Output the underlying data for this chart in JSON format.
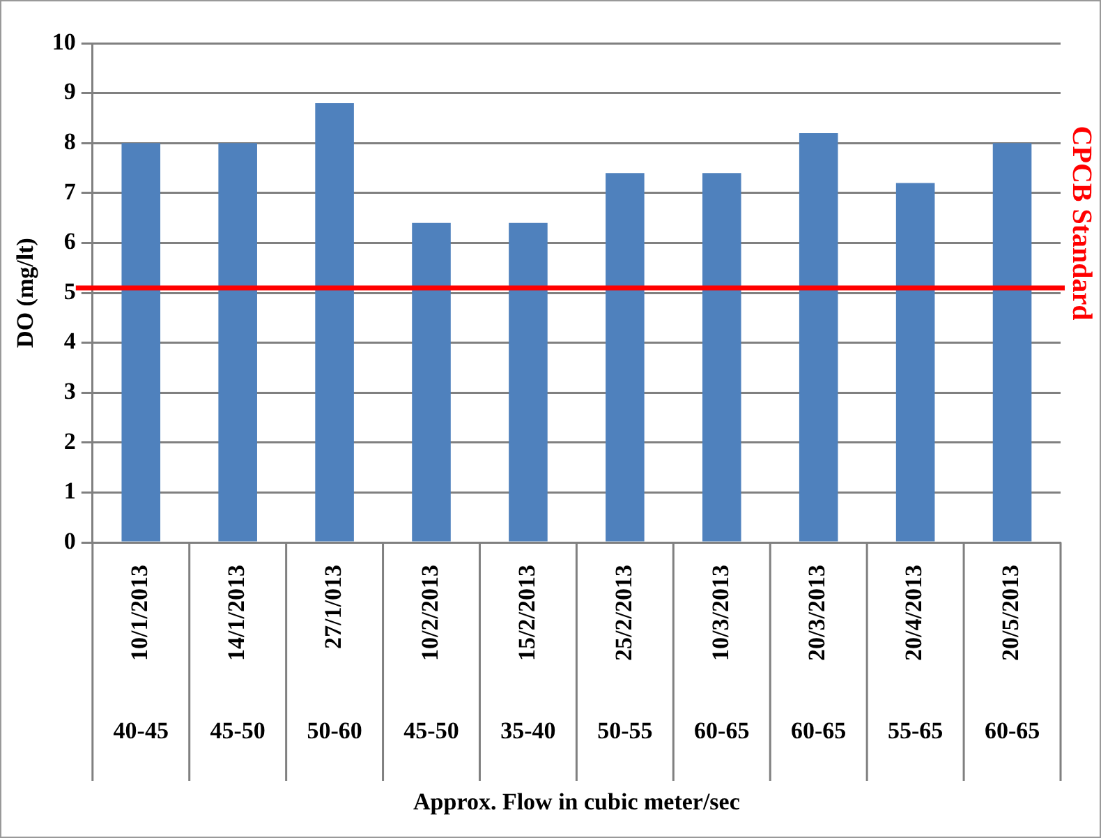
{
  "chart_data": {
    "type": "bar",
    "ylabel": "DO (mg/lt)",
    "categories": [
      "10/1/2013",
      "14/1/2013",
      "27/1/013",
      "10/2/2013",
      "15/2/2013",
      "25/2/2013",
      "10/3/2013",
      "20/3/2013",
      "20/4/2013",
      "20/5/2013"
    ],
    "values": [
      8,
      8,
      8.8,
      6.4,
      6.4,
      7.4,
      7.4,
      8.2,
      7.2,
      8
    ],
    "color": "#4f81bd",
    "ylim": [
      0,
      10
    ],
    "yticks": [
      0,
      1,
      2,
      3,
      4,
      5,
      6,
      7,
      8,
      9,
      10
    ],
    "grid": "y",
    "legend": false,
    "ref_lines": [
      {
        "axis": "y",
        "value": 5.1,
        "label": "CPCB Standard",
        "color": "#ff0000"
      }
    ],
    "annotations": [
      "40-45",
      "45-50",
      "50-60",
      "45-50",
      "35-40",
      "50-55",
      "60-65",
      "60-65",
      "55-65",
      "60-65",
      "Approx. Flow in cubic meter/sec"
    ]
  }
}
